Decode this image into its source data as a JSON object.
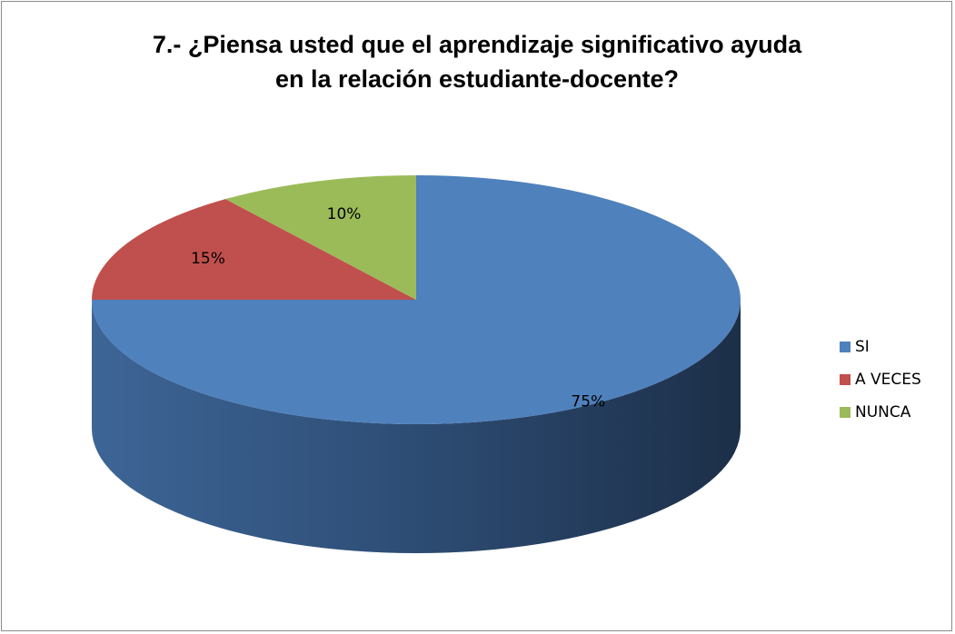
{
  "chart_data": {
    "type": "pie",
    "title": "7.- ¿Piensa usted  que el aprendizaje significativo ayuda en la relación estudiante-docente?",
    "categories": [
      "SI",
      "A VECES",
      "NUNCA"
    ],
    "values": [
      75,
      15,
      10
    ],
    "value_labels": [
      "75%",
      "15%",
      "10%"
    ],
    "colors": [
      "#4f81bd",
      "#c0504d",
      "#9bbb59"
    ],
    "legend": "right"
  }
}
